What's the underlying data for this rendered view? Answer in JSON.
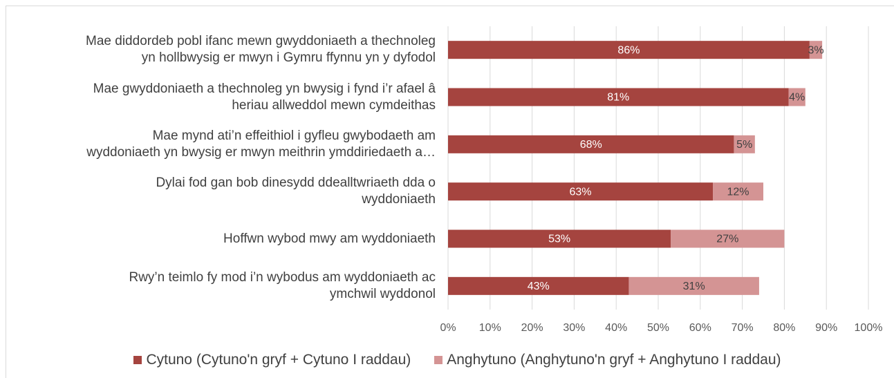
{
  "chart_data": {
    "type": "bar",
    "orientation": "horizontal",
    "stacked": true,
    "categories": [
      "Mae diddordeb pobl ifanc mewn gwyddoniaeth a thechnoleg\nyn hollbwysig er mwyn i Gymru ffynnu yn y dyfodol",
      "Mae gwyddoniaeth a thechnoleg yn bwysig i fynd i’r afael â\nheriau allweddol mewn cymdeithas",
      "Mae mynd ati’n effeithiol i gyfleu gwybodaeth am\nwyddoniaeth yn bwysig er mwyn meithrin ymddiriedaeth a…",
      "Dylai fod gan bob dinesydd ddealltwriaeth dda o\nwyddoniaeth",
      "Hoffwn wybod mwy am wyddoniaeth",
      "Rwy’n teimlo fy mod i’n wybodus am wyddoniaeth ac\nymchwil wyddonol"
    ],
    "series": [
      {
        "name": "Cytuno (Cytuno'n gryf + Cytuno I raddau)",
        "color": "#a5443f",
        "values": [
          86,
          81,
          68,
          63,
          53,
          43
        ],
        "value_labels": [
          "86%",
          "81%",
          "68%",
          "63%",
          "53%",
          "43%"
        ]
      },
      {
        "name": "Anghytuno (Anghytuno'n gryf + Anghytuno I raddau)",
        "color": "#d49494",
        "values": [
          3,
          4,
          5,
          12,
          27,
          31
        ],
        "value_labels": [
          "3%",
          "4%",
          "5%",
          "12%",
          "27%",
          "31%"
        ]
      }
    ],
    "xlim": [
      0,
      100
    ],
    "xticks": [
      {
        "value": 0,
        "label": "0%"
      },
      {
        "value": 10,
        "label": "10%"
      },
      {
        "value": 20,
        "label": "20%"
      },
      {
        "value": 30,
        "label": "30%"
      },
      {
        "value": 40,
        "label": "40%"
      },
      {
        "value": 50,
        "label": "50%"
      },
      {
        "value": 60,
        "label": "60%"
      },
      {
        "value": 70,
        "label": "70%"
      },
      {
        "value": 80,
        "label": "80%"
      },
      {
        "value": 90,
        "label": "90%"
      },
      {
        "value": 100,
        "label": "100%"
      }
    ],
    "grid": true,
    "legend": "bottom"
  }
}
